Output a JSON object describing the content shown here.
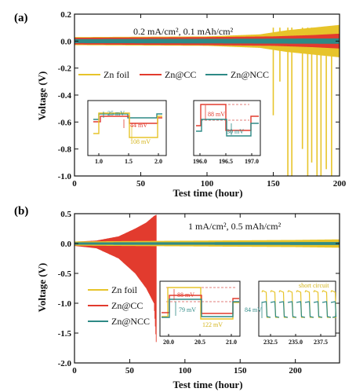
{
  "colors": {
    "zn_foil": "#E7C42A",
    "zn_cc": "#E23B2E",
    "zn_ncc": "#2E8A86",
    "dashed": "#D9534F",
    "short_circuit_text": "#D4B41A",
    "axis": "#111111"
  },
  "chart_data": [
    {
      "type": "line",
      "panel_label": "(a)",
      "condition": "0.2 mA/cm², 0.1 mAh/cm²",
      "xlabel": "Test time (hour)",
      "ylabel": "Voltage (V)",
      "xlim": [
        0,
        200
      ],
      "ylim": [
        -1.0,
        0.2
      ],
      "x_ticks": [
        0,
        50,
        100,
        150,
        200
      ],
      "x_tick_labels": [
        "0",
        "50",
        "100",
        "150",
        "200"
      ],
      "y_ticks": [
        0.2,
        0.0,
        -0.2,
        -0.4,
        -0.6,
        -0.8,
        -1.0
      ],
      "y_tick_labels": [
        "0.2",
        "0.0",
        "-0.2",
        "-0.4",
        "-0.6",
        "-0.8",
        "-1.0"
      ],
      "legend": [
        "Zn foil",
        "Zn@CC",
        "Zn@NCC"
      ],
      "legend_position": "middle-left",
      "series": [
        {
          "name": "Zn foil",
          "band": [
            {
              "x": 0,
              "amp": 0.03
            },
            {
              "x": 100,
              "amp": 0.035
            },
            {
              "x": 140,
              "amp": 0.05
            },
            {
              "x": 160,
              "amp": 0.08
            },
            {
              "x": 180,
              "amp": 0.1
            },
            {
              "x": 200,
              "amp": 0.12
            }
          ],
          "drops": [
            {
              "x": 150,
              "to": -0.55
            },
            {
              "x": 155,
              "to": -0.3
            },
            {
              "x": 161,
              "to": -1.0
            },
            {
              "x": 164,
              "to": -1.0
            },
            {
              "x": 172,
              "to": -0.8
            },
            {
              "x": 176,
              "to": -1.0
            },
            {
              "x": 179,
              "to": -0.9
            },
            {
              "x": 183,
              "to": -1.0
            },
            {
              "x": 186,
              "to": -1.0
            },
            {
              "x": 190,
              "to": -0.95
            },
            {
              "x": 194,
              "to": -1.0
            }
          ]
        },
        {
          "name": "Zn@CC",
          "band": [
            {
              "x": 0,
              "amp": 0.025
            },
            {
              "x": 100,
              "amp": 0.03
            },
            {
              "x": 150,
              "amp": 0.035
            },
            {
              "x": 180,
              "amp": 0.045
            },
            {
              "x": 200,
              "amp": 0.055
            }
          ]
        },
        {
          "name": "Zn@NCC",
          "band": [
            {
              "x": 0,
              "amp": 0.015
            },
            {
              "x": 100,
              "amp": 0.017
            },
            {
              "x": 200,
              "amp": 0.02
            }
          ]
        }
      ],
      "insets": [
        {
          "x_ticks": [
            1.0,
            1.5,
            2.0
          ],
          "x_tick_labels": [
            "1.0",
            "1.5",
            "2.0"
          ],
          "annotations": [
            {
              "text": "25 mV",
              "series": "Zn@NCC"
            },
            {
              "text": "44 mV",
              "series": "Zn@CC"
            },
            {
              "text": "108 mV",
              "series": "Zn foil"
            }
          ]
        },
        {
          "x_ticks": [
            196.0,
            196.5,
            197.0
          ],
          "x_tick_labels": [
            "196.0",
            "196.5",
            "197.0"
          ],
          "annotations": [
            {
              "text": "88 mV",
              "series": "Zn@CC"
            },
            {
              "text": "30 mV",
              "series": "Zn@NCC"
            }
          ]
        }
      ]
    },
    {
      "type": "line",
      "panel_label": "(b)",
      "condition": "1 mA/cm², 0.5 mAh/cm²",
      "xlabel": "Test time (hour)",
      "ylabel": "Voltage (V)",
      "xlim": [
        0,
        240
      ],
      "ylim": [
        -2.0,
        0.5
      ],
      "x_ticks": [
        0,
        50,
        100,
        150,
        200
      ],
      "x_tick_labels": [
        "0",
        "50",
        "100",
        "150",
        "200"
      ],
      "y_ticks": [
        0.5,
        0.0,
        -0.5,
        -1.0,
        -1.5,
        -2.0
      ],
      "y_tick_labels": [
        "0.5",
        "0.0",
        "-0.5",
        "-1.0",
        "-1.5",
        "-2.0"
      ],
      "legend": [
        "Zn foil",
        "Zn@CC",
        "Zn@NCC"
      ],
      "legend_position": "lower-left",
      "series": [
        {
          "name": "Zn@CC",
          "band": [
            {
              "x": 0,
              "upper": 0.03,
              "lower": -0.04
            },
            {
              "x": 20,
              "upper": 0.05,
              "lower": -0.08
            },
            {
              "x": 40,
              "upper": 0.12,
              "lower": -0.25
            },
            {
              "x": 55,
              "upper": 0.25,
              "lower": -0.5
            },
            {
              "x": 65,
              "upper": 0.35,
              "lower": -0.75
            },
            {
              "x": 72,
              "upper": 0.46,
              "lower": -1.0
            },
            {
              "x": 74,
              "upper": 0.48,
              "lower": -1.65
            }
          ]
        },
        {
          "name": "Zn foil",
          "band": [
            {
              "x": 0,
              "amp": 0.035
            },
            {
              "x": 120,
              "amp": 0.05
            },
            {
              "x": 200,
              "amp": 0.06
            },
            {
              "x": 240,
              "amp": 0.07
            }
          ]
        },
        {
          "name": "Zn@NCC",
          "band": [
            {
              "x": 0,
              "amp": 0.02
            },
            {
              "x": 120,
              "amp": 0.022
            },
            {
              "x": 240,
              "amp": 0.025
            }
          ]
        }
      ],
      "insets": [
        {
          "x_ticks": [
            20.0,
            20.5,
            21.0
          ],
          "x_tick_labels": [
            "20.0",
            "20.5",
            "21.0"
          ],
          "annotations": [
            {
              "text": "88 mV",
              "series": "Zn@CC"
            },
            {
              "text": "79 mV",
              "series": "Zn@NCC"
            },
            {
              "text": "122 mV",
              "series": "Zn foil"
            }
          ]
        },
        {
          "x_ticks": [
            232.5,
            235.0,
            237.5
          ],
          "x_tick_labels": [
            "232.5",
            "235.0",
            "237.5"
          ],
          "annotations": [
            {
              "text": "84 mV",
              "series": "Zn@NCC"
            },
            {
              "text": "short circuit",
              "series": "Zn foil"
            }
          ]
        }
      ]
    }
  ]
}
